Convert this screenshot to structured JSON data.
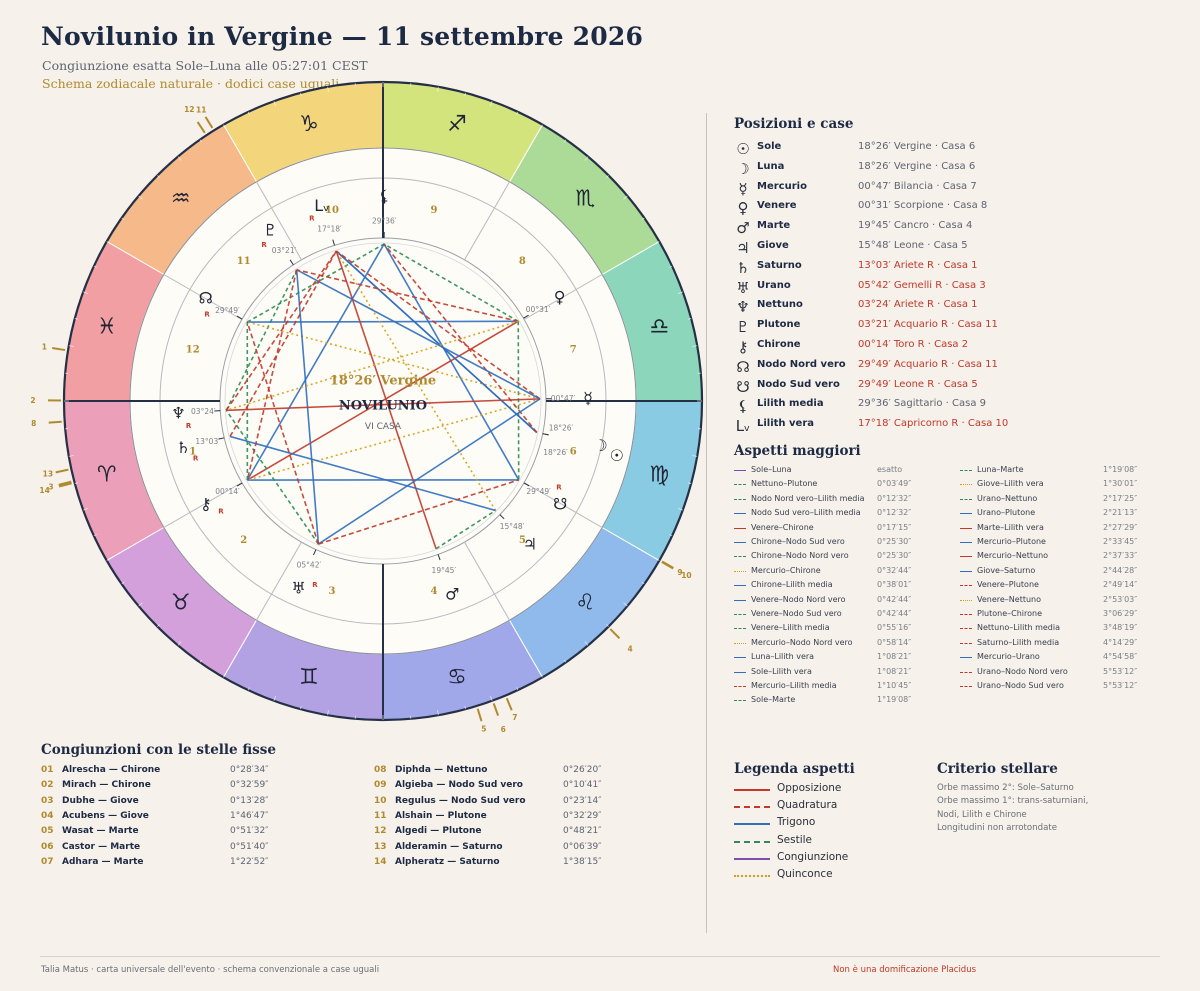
{
  "header": {
    "title": "Novilunio in Vergine — 11 settembre 2026",
    "subtitle": "Congiunzione esatta Sole–Luna alle 05:27:01 CEST",
    "subtitle2": "Schema zodiacale naturale · dodici case uguali"
  },
  "colors": {
    "opposition": "#c0392b",
    "square": "#c0392b",
    "trine": "#2f6fbf",
    "sextile": "#2e8b57",
    "conjunction": "#7b4fb0",
    "quincunx": "#d4a017",
    "retro": "#c0392b",
    "accent": "#b08a2e"
  },
  "wheel": {
    "center_label_degree": "18°26′ Vergine",
    "center_label_event": "NOVILUNIO",
    "center_label_house": "VI CASA",
    "sign_glyphs": [
      "♈",
      "♉",
      "♊",
      "♋",
      "♌",
      "♍",
      "♎",
      "♏",
      "♐",
      "♑",
      "♒",
      "♓"
    ],
    "sign_icon_names": [
      "aries-icon",
      "taurus-icon",
      "gemini-icon",
      "cancer-icon",
      "leo-icon",
      "virgo-icon",
      "libra-icon",
      "scorpio-icon",
      "sagittarius-icon",
      "capricorn-icon",
      "aquarius-icon",
      "pisces-icon"
    ],
    "sign_colors": [
      "#ec9fb8",
      "#d3a0dc",
      "#b2a2e4",
      "#a1a8ea",
      "#90b9ec",
      "#88cbe3",
      "#8cd6bc",
      "#acdb98",
      "#d4e47c",
      "#f3d67c",
      "#f5b98a",
      "#f19fa3"
    ],
    "houses": [
      "1",
      "2",
      "3",
      "4",
      "5",
      "6",
      "7",
      "8",
      "9",
      "10",
      "11",
      "12"
    ],
    "star_marks": [
      "1",
      "2",
      "3",
      "4",
      "5",
      "6",
      "7",
      "8",
      "9",
      "10",
      "11",
      "12",
      "13",
      "14"
    ],
    "planets": [
      {
        "name": "Sole",
        "glyph": "☉",
        "icon": "sun-icon",
        "deg": "18°26′",
        "lon": 168.43,
        "r": 0,
        "placement": "outer"
      },
      {
        "name": "Luna",
        "glyph": "☽",
        "icon": "moon-icon",
        "deg": "18°26′",
        "lon": 168.43,
        "r": 0,
        "placement": "inner"
      },
      {
        "name": "Mercurio",
        "glyph": "☿",
        "icon": "mercury-icon",
        "deg": "00°47′",
        "lon": 180.78,
        "r": 0
      },
      {
        "name": "Venere",
        "glyph": "♀",
        "icon": "venus-icon",
        "deg": "00°31′",
        "lon": 210.52,
        "r": 0
      },
      {
        "name": "Marte",
        "glyph": "♂",
        "icon": "mars-icon",
        "deg": "19°45′",
        "lon": 109.75,
        "r": 0
      },
      {
        "name": "Giove",
        "glyph": "♃",
        "icon": "jupiter-icon",
        "deg": "15°48′",
        "lon": 135.8,
        "r": 0
      },
      {
        "name": "Saturno",
        "glyph": "♄",
        "icon": "saturn-icon",
        "deg": "13°03′",
        "lon": 13.05,
        "r": 1
      },
      {
        "name": "Urano",
        "glyph": "♅",
        "icon": "uranus-icon",
        "deg": "05°42′",
        "lon": 65.7,
        "r": 1
      },
      {
        "name": "Nettuno",
        "glyph": "♆",
        "icon": "neptune-icon",
        "deg": "03°24′",
        "lon": 3.4,
        "r": 1
      },
      {
        "name": "Plutone",
        "glyph": "♇",
        "icon": "pluto-icon",
        "deg": "03°21′",
        "lon": 303.35,
        "r": 1
      },
      {
        "name": "Chirone",
        "glyph": "⚷",
        "icon": "chiron-icon",
        "deg": "00°14′",
        "lon": 30.23,
        "r": 1
      },
      {
        "name": "Nodo Nord vero",
        "glyph": "☊",
        "icon": "north-node-icon",
        "deg": "29°49′",
        "lon": 329.82,
        "r": 1
      },
      {
        "name": "Nodo Sud vero",
        "glyph": "☋",
        "icon": "south-node-icon",
        "deg": "29°49′",
        "lon": 149.82,
        "r": 1
      },
      {
        "name": "Lilith media",
        "glyph": "⚸",
        "icon": "lilith-mean-icon",
        "deg": "29°36′",
        "lon": 269.6,
        "r": 0
      },
      {
        "name": "Lilith vera",
        "glyph": "Lᵥ",
        "icon": "lilith-true-icon",
        "deg": "17°18′",
        "lon": 287.3,
        "r": 1
      }
    ],
    "aspect_lines": [
      [
        0,
        1,
        "conjunction"
      ],
      [
        8,
        9,
        "sextile"
      ],
      [
        11,
        13,
        "sextile"
      ],
      [
        12,
        13,
        "trine"
      ],
      [
        3,
        10,
        "opposition"
      ],
      [
        10,
        12,
        "trine"
      ],
      [
        10,
        11,
        "sextile"
      ],
      [
        2,
        10,
        "quincunx"
      ],
      [
        10,
        13,
        "trine"
      ],
      [
        3,
        11,
        "trine"
      ],
      [
        3,
        12,
        "sextile"
      ],
      [
        3,
        13,
        "sextile"
      ],
      [
        2,
        11,
        "quincunx"
      ],
      [
        1,
        14,
        "trine"
      ],
      [
        0,
        14,
        "trine"
      ],
      [
        2,
        14,
        "square"
      ],
      [
        0,
        13,
        "square"
      ],
      [
        4,
        5,
        "sextile"
      ],
      [
        5,
        14,
        "quincunx"
      ],
      [
        7,
        8,
        "sextile"
      ],
      [
        7,
        9,
        "trine"
      ],
      [
        4,
        14,
        "opposition"
      ],
      [
        2,
        9,
        "trine"
      ],
      [
        2,
        8,
        "opposition"
      ],
      [
        5,
        6,
        "trine"
      ],
      [
        3,
        9,
        "square"
      ],
      [
        3,
        8,
        "quincunx"
      ],
      [
        9,
        10,
        "square"
      ],
      [
        8,
        14,
        "square"
      ],
      [
        6,
        14,
        "square"
      ],
      [
        2,
        7,
        "trine"
      ],
      [
        7,
        11,
        "square"
      ],
      [
        7,
        12,
        "square"
      ]
    ]
  },
  "positions": {
    "title": "Posizioni e case",
    "rows": [
      {
        "glyph": "☉",
        "icon": "sun-icon",
        "name": "Sole",
        "value": "18°26′ Vergine · Casa 6",
        "retro": false
      },
      {
        "glyph": "☽",
        "icon": "moon-icon",
        "name": "Luna",
        "value": "18°26′ Vergine · Casa 6",
        "retro": false
      },
      {
        "glyph": "☿",
        "icon": "mercury-icon",
        "name": "Mercurio",
        "value": "00°47′ Bilancia · Casa 7",
        "retro": false
      },
      {
        "glyph": "♀",
        "icon": "venus-icon",
        "name": "Venere",
        "value": "00°31′ Scorpione · Casa 8",
        "retro": false
      },
      {
        "glyph": "♂",
        "icon": "mars-icon",
        "name": "Marte",
        "value": "19°45′ Cancro · Casa 4",
        "retro": false
      },
      {
        "glyph": "♃",
        "icon": "jupiter-icon",
        "name": "Giove",
        "value": "15°48′ Leone · Casa 5",
        "retro": false
      },
      {
        "glyph": "♄",
        "icon": "saturn-icon",
        "name": "Saturno",
        "value": "13°03′ Ariete R · Casa 1",
        "retro": true
      },
      {
        "glyph": "♅",
        "icon": "uranus-icon",
        "name": "Urano",
        "value": "05°42′ Gemelli R · Casa 3",
        "retro": true
      },
      {
        "glyph": "♆",
        "icon": "neptune-icon",
        "name": "Nettuno",
        "value": "03°24′ Ariete R · Casa 1",
        "retro": true
      },
      {
        "glyph": "♇",
        "icon": "pluto-icon",
        "name": "Plutone",
        "value": "03°21′ Acquario R · Casa 11",
        "retro": true
      },
      {
        "glyph": "⚷",
        "icon": "chiron-icon",
        "name": "Chirone",
        "value": "00°14′ Toro R · Casa 2",
        "retro": true
      },
      {
        "glyph": "☊",
        "icon": "north-node-icon",
        "name": "Nodo Nord vero",
        "value": "29°49′ Acquario R · Casa 11",
        "retro": true
      },
      {
        "glyph": "☋",
        "icon": "south-node-icon",
        "name": "Nodo Sud vero",
        "value": "29°49′ Leone R · Casa 5",
        "retro": true
      },
      {
        "glyph": "⚸",
        "icon": "lilith-mean-icon",
        "name": "Lilith media",
        "value": "29°36′ Sagittario · Casa 9",
        "retro": false
      },
      {
        "glyph": "Lᵥ",
        "icon": "lilith-true-icon",
        "name": "Lilith vera",
        "value": "17°18′ Capricorno R · Casa 10",
        "retro": true
      }
    ]
  },
  "aspects": {
    "title": "Aspetti maggiori",
    "col1": [
      {
        "name": "Sole–Luna",
        "orb": "esatto",
        "type": "conjunction"
      },
      {
        "name": "Nettuno–Plutone",
        "orb": "0°03′49″",
        "type": "sextile"
      },
      {
        "name": "Nodo Nord vero–Lilith media",
        "orb": "0°12′32″",
        "type": "sextile"
      },
      {
        "name": "Nodo Sud vero–Lilith media",
        "orb": "0°12′32″",
        "type": "trine"
      },
      {
        "name": "Venere–Chirone",
        "orb": "0°17′15″",
        "type": "opposition"
      },
      {
        "name": "Chirone–Nodo Sud vero",
        "orb": "0°25′30″",
        "type": "trine"
      },
      {
        "name": "Chirone–Nodo Nord vero",
        "orb": "0°25′30″",
        "type": "sextile"
      },
      {
        "name": "Mercurio–Chirone",
        "orb": "0°32′44″",
        "type": "quincunx"
      },
      {
        "name": "Chirone–Lilith media",
        "orb": "0°38′01″",
        "type": "trine"
      },
      {
        "name": "Venere–Nodo Nord vero",
        "orb": "0°42′44″",
        "type": "trine"
      },
      {
        "name": "Venere–Nodo Sud vero",
        "orb": "0°42′44″",
        "type": "sextile"
      },
      {
        "name": "Venere–Lilith media",
        "orb": "0°55′16″",
        "type": "sextile"
      },
      {
        "name": "Mercurio–Nodo Nord vero",
        "orb": "0°58′14″",
        "type": "quincunx"
      },
      {
        "name": "Luna–Lilith vera",
        "orb": "1°08′21″",
        "type": "trine"
      },
      {
        "name": "Sole–Lilith vera",
        "orb": "1°08′21″",
        "type": "trine"
      },
      {
        "name": "Mercurio–Lilith media",
        "orb": "1°10′45″",
        "type": "square"
      },
      {
        "name": "Sole–Marte",
        "orb": "1°19′08″",
        "type": "sextile"
      }
    ],
    "col2": [
      {
        "name": "Luna–Marte",
        "orb": "1°19′08″",
        "type": "sextile"
      },
      {
        "name": "Giove–Lilith vera",
        "orb": "1°30′01″",
        "type": "quincunx"
      },
      {
        "name": "Urano–Nettuno",
        "orb": "2°17′25″",
        "type": "sextile"
      },
      {
        "name": "Urano–Plutone",
        "orb": "2°21′13″",
        "type": "trine"
      },
      {
        "name": "Marte–Lilith vera",
        "orb": "2°27′29″",
        "type": "opposition"
      },
      {
        "name": "Mercurio–Plutone",
        "orb": "2°33′45″",
        "type": "trine"
      },
      {
        "name": "Mercurio–Nettuno",
        "orb": "2°37′33″",
        "type": "opposition"
      },
      {
        "name": "Giove–Saturno",
        "orb": "2°44′28″",
        "type": "trine"
      },
      {
        "name": "Venere–Plutone",
        "orb": "2°49′14″",
        "type": "square"
      },
      {
        "name": "Venere–Nettuno",
        "orb": "2°53′03″",
        "type": "quincunx"
      },
      {
        "name": "Plutone–Chirone",
        "orb": "3°06′29″",
        "type": "square"
      },
      {
        "name": "Nettuno–Lilith media",
        "orb": "3°48′19″",
        "type": "square"
      },
      {
        "name": "Saturno–Lilith media",
        "orb": "4°14′29″",
        "type": "square"
      },
      {
        "name": "Mercurio–Urano",
        "orb": "4°54′58″",
        "type": "trine"
      },
      {
        "name": "Urano–Nodo Nord vero",
        "orb": "5°53′12″",
        "type": "square"
      },
      {
        "name": "Urano–Nodo Sud vero",
        "orb": "5°53′12″",
        "type": "square"
      }
    ]
  },
  "stars": {
    "title": "Congiunzioni con le stelle fisse",
    "col1": [
      {
        "no": "01",
        "name": "Alrescha — Chirone",
        "orb": "0°28′34″"
      },
      {
        "no": "02",
        "name": "Mirach — Chirone",
        "orb": "0°32′59″"
      },
      {
        "no": "03",
        "name": "Dubhe — Giove",
        "orb": "0°13′28″"
      },
      {
        "no": "04",
        "name": "Acubens — Giove",
        "orb": "1°46′47″"
      },
      {
        "no": "05",
        "name": "Wasat — Marte",
        "orb": "0°51′32″"
      },
      {
        "no": "06",
        "name": "Castor — Marte",
        "orb": "0°51′40″"
      },
      {
        "no": "07",
        "name": "Adhara — Marte",
        "orb": "1°22′52″"
      }
    ],
    "col2": [
      {
        "no": "08",
        "name": "Diphda — Nettuno",
        "orb": "0°26′20″"
      },
      {
        "no": "09",
        "name": "Algieba — Nodo Sud vero",
        "orb": "0°10′41″"
      },
      {
        "no": "10",
        "name": "Regulus — Nodo Sud vero",
        "orb": "0°23′14″"
      },
      {
        "no": "11",
        "name": "Alshain — Plutone",
        "orb": "0°32′29″"
      },
      {
        "no": "12",
        "name": "Algedi — Plutone",
        "orb": "0°48′21″"
      },
      {
        "no": "13",
        "name": "Alderamin — Saturno",
        "orb": "0°06′39″"
      },
      {
        "no": "14",
        "name": "Alpheratz — Saturno",
        "orb": "1°38′15″"
      }
    ]
  },
  "legend": {
    "title": "Legenda aspetti",
    "items": [
      {
        "label": "Opposizione",
        "type": "opposition"
      },
      {
        "label": "Quadratura",
        "type": "square"
      },
      {
        "label": "Trigono",
        "type": "trine"
      },
      {
        "label": "Sestile",
        "type": "sextile"
      },
      {
        "label": "Congiunzione",
        "type": "conjunction"
      },
      {
        "label": "Quinconce",
        "type": "quincunx"
      }
    ]
  },
  "criteria": {
    "title": "Criterio stellare",
    "lines": [
      "Orbe massimo 2°: Sole–Saturno",
      "Orbe massimo 1°: trans-saturniani,",
      "Nodi, Lilith e Chirone",
      "Longitudini non arrotondate"
    ]
  },
  "footer": {
    "left": "Talia Matus · carta universale dell'evento · schema convenzionale a case uguali",
    "right": "Non è una domificazione Placidus"
  }
}
